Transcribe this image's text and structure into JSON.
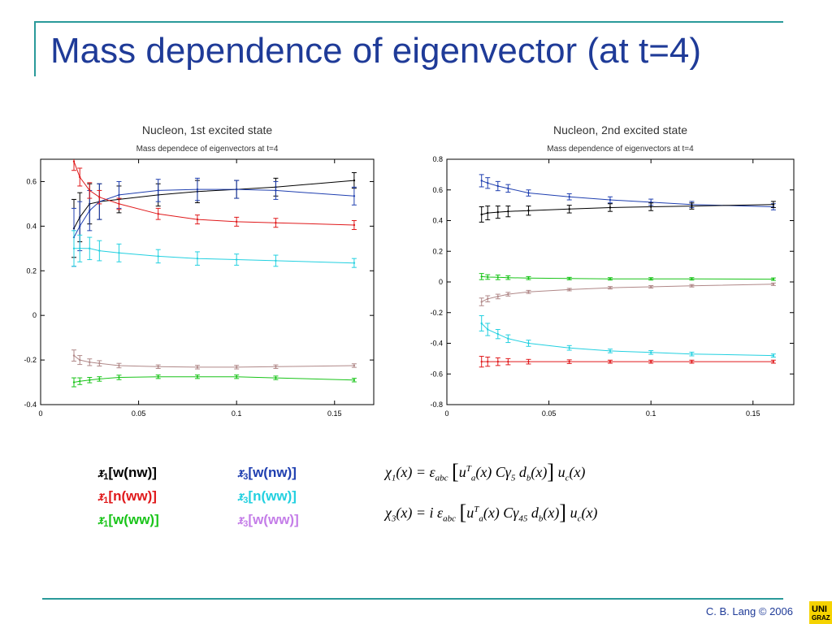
{
  "slide": {
    "title": "Mass dependence of eigenvector (at t=4)",
    "footer": "C. B. Lang © 2006",
    "logo_line1": "UNI",
    "logo_line2": "GRAZ"
  },
  "legend": {
    "col1": [
      {
        "sym": "𝔵",
        "sub": "1",
        "text": "[w(nw)]",
        "color": "#000000"
      },
      {
        "sym": "𝔵",
        "sub": "1",
        "text": "[n(ww)]",
        "color": "#e0191b"
      },
      {
        "sym": "𝔵",
        "sub": "1",
        "text": "[w(ww)]",
        "color": "#19c419"
      }
    ],
    "col2": [
      {
        "sym": "𝔵",
        "sub": "3",
        "text": "[w(nw)]",
        "color": "#1f3fb0"
      },
      {
        "sym": "𝔵",
        "sub": "3",
        "text": "[n(ww)]",
        "color": "#22d0e0"
      },
      {
        "sym": "𝔵",
        "sub": "3",
        "text": "[w(ww)]",
        "color": "#c47de8"
      }
    ]
  },
  "formulas": {
    "f1": {
      "lhs": "χ",
      "lhs_sub": "1",
      "arg": "(x) = ε",
      "eps_sub": "abc",
      "body1": "u",
      "u_sup": "T",
      "u_sub": "a",
      "body2": "(x) Cγ",
      "g_sub1": "5",
      "g_sub2": "",
      "body3": " d",
      "d_sub": "b",
      "body4": "(x)",
      "tail": "u",
      "tail_sub": "c",
      "tail2": "(x)"
    },
    "f3": {
      "lhs": "χ",
      "lhs_sub": "3",
      "arg": "(x) = i ε",
      "eps_sub": "abc",
      "body1": "u",
      "u_sup": "T",
      "u_sub": "a",
      "body2": "(x) Cγ",
      "g_sub1": "4",
      "g_sub2": "5",
      "body3": " d",
      "d_sub": "b",
      "body4": "(x)",
      "tail": "u",
      "tail_sub": "c",
      "tail2": "(x)"
    }
  },
  "chart_data": [
    {
      "type": "line",
      "title": "Nucleon, 1st excited state",
      "subtitle": "Mass dependece of eigenvectors at t=4",
      "xlabel": "",
      "ylabel": "",
      "xlim": [
        0,
        0.17
      ],
      "ylim": [
        -0.4,
        0.7
      ],
      "xticks": [
        0,
        0.05,
        0.1,
        0.15
      ],
      "xtick_labels": [
        "0",
        "0.05",
        "0.1",
        "0.15"
      ],
      "yticks": [
        -0.4,
        -0.2,
        0,
        0.2,
        0.4,
        0.6
      ],
      "ytick_labels": [
        "-0.4",
        "-0.2",
        "0",
        "0.2",
        "0.4",
        "0.6"
      ],
      "grid": false,
      "x": [
        0.017,
        0.02,
        0.025,
        0.03,
        0.04,
        0.06,
        0.08,
        0.1,
        0.12,
        0.16
      ],
      "series": [
        {
          "color": "#000000",
          "values": [
            0.39,
            0.44,
            0.5,
            0.51,
            0.52,
            0.54,
            0.555,
            0.565,
            0.575,
            0.605
          ],
          "errors": [
            0.13,
            0.11,
            0.09,
            0.08,
            0.06,
            0.05,
            0.05,
            0.04,
            0.04,
            0.035
          ]
        },
        {
          "color": "#1f3fb0",
          "values": [
            0.35,
            0.4,
            0.47,
            0.51,
            0.54,
            0.56,
            0.565,
            0.565,
            0.56,
            0.535
          ],
          "errors": [
            0.13,
            0.11,
            0.09,
            0.08,
            0.06,
            0.05,
            0.05,
            0.04,
            0.04,
            0.04
          ]
        },
        {
          "color": "#e0191b",
          "values": [
            0.69,
            0.62,
            0.56,
            0.53,
            0.5,
            0.455,
            0.43,
            0.42,
            0.415,
            0.405
          ],
          "errors": [
            0.04,
            0.04,
            0.035,
            0.03,
            0.025,
            0.025,
            0.02,
            0.02,
            0.02,
            0.02
          ]
        },
        {
          "color": "#22d0e0",
          "values": [
            0.3,
            0.3,
            0.3,
            0.29,
            0.28,
            0.265,
            0.255,
            0.25,
            0.245,
            0.235
          ],
          "errors": [
            0.08,
            0.06,
            0.05,
            0.045,
            0.04,
            0.03,
            0.03,
            0.025,
            0.025,
            0.02
          ]
        },
        {
          "color": "#b08888",
          "values": [
            -0.18,
            -0.2,
            -0.21,
            -0.215,
            -0.225,
            -0.23,
            -0.232,
            -0.232,
            -0.23,
            -0.225
          ],
          "errors": [
            0.025,
            0.02,
            0.015,
            0.012,
            0.01,
            0.008,
            0.008,
            0.008,
            0.008,
            0.008
          ]
        },
        {
          "color": "#19c419",
          "values": [
            -0.3,
            -0.295,
            -0.29,
            -0.285,
            -0.278,
            -0.275,
            -0.275,
            -0.275,
            -0.28,
            -0.29
          ],
          "errors": [
            0.02,
            0.015,
            0.012,
            0.01,
            0.01,
            0.008,
            0.008,
            0.008,
            0.008,
            0.008
          ]
        }
      ]
    },
    {
      "type": "line",
      "title": "Nucleon, 2nd excited state",
      "subtitle": "Mass dependence of eigenvectors at t=4",
      "xlabel": "",
      "ylabel": "",
      "xlim": [
        0,
        0.17
      ],
      "ylim": [
        -0.8,
        0.8
      ],
      "xticks": [
        0,
        0.05,
        0.1,
        0.15
      ],
      "xtick_labels": [
        "0",
        "0.05",
        "0.1",
        "0.15"
      ],
      "yticks": [
        -0.8,
        -0.6,
        -0.4,
        -0.2,
        0,
        0.2,
        0.4,
        0.6,
        0.8
      ],
      "ytick_labels": [
        "-0.8",
        "-0.6",
        "-0.4",
        "-0.2",
        "0",
        "0.2",
        "0.4",
        "0.6",
        "0.8"
      ],
      "grid": false,
      "x": [
        0.017,
        0.02,
        0.025,
        0.03,
        0.04,
        0.06,
        0.08,
        0.1,
        0.12,
        0.16
      ],
      "series": [
        {
          "color": "#1f3fb0",
          "values": [
            0.66,
            0.645,
            0.625,
            0.61,
            0.58,
            0.555,
            0.535,
            0.52,
            0.505,
            0.49
          ],
          "errors": [
            0.04,
            0.035,
            0.03,
            0.025,
            0.02,
            0.02,
            0.02,
            0.02,
            0.02,
            0.02
          ]
        },
        {
          "color": "#000000",
          "values": [
            0.44,
            0.45,
            0.455,
            0.46,
            0.465,
            0.475,
            0.485,
            0.49,
            0.495,
            0.505
          ],
          "errors": [
            0.05,
            0.045,
            0.04,
            0.035,
            0.03,
            0.025,
            0.025,
            0.025,
            0.02,
            0.02
          ]
        },
        {
          "color": "#19c419",
          "values": [
            0.035,
            0.032,
            0.03,
            0.028,
            0.025,
            0.022,
            0.02,
            0.02,
            0.02,
            0.018
          ],
          "errors": [
            0.02,
            0.015,
            0.015,
            0.012,
            0.01,
            0.008,
            0.008,
            0.008,
            0.008,
            0.008
          ]
        },
        {
          "color": "#b08888",
          "values": [
            -0.13,
            -0.11,
            -0.095,
            -0.08,
            -0.065,
            -0.05,
            -0.038,
            -0.032,
            -0.025,
            -0.015
          ],
          "errors": [
            0.025,
            0.02,
            0.015,
            0.012,
            0.01,
            0.008,
            0.008,
            0.008,
            0.008,
            0.008
          ]
        },
        {
          "color": "#22d0e0",
          "values": [
            -0.27,
            -0.31,
            -0.34,
            -0.37,
            -0.4,
            -0.43,
            -0.45,
            -0.46,
            -0.47,
            -0.48
          ],
          "errors": [
            0.05,
            0.04,
            0.03,
            0.025,
            0.02,
            0.015,
            0.012,
            0.012,
            0.012,
            0.01
          ]
        },
        {
          "color": "#e0191b",
          "values": [
            -0.52,
            -0.52,
            -0.52,
            -0.52,
            -0.52,
            -0.52,
            -0.52,
            -0.52,
            -0.52,
            -0.52
          ],
          "errors": [
            0.035,
            0.03,
            0.025,
            0.02,
            0.015,
            0.012,
            0.01,
            0.01,
            0.01,
            0.01
          ]
        }
      ]
    }
  ]
}
